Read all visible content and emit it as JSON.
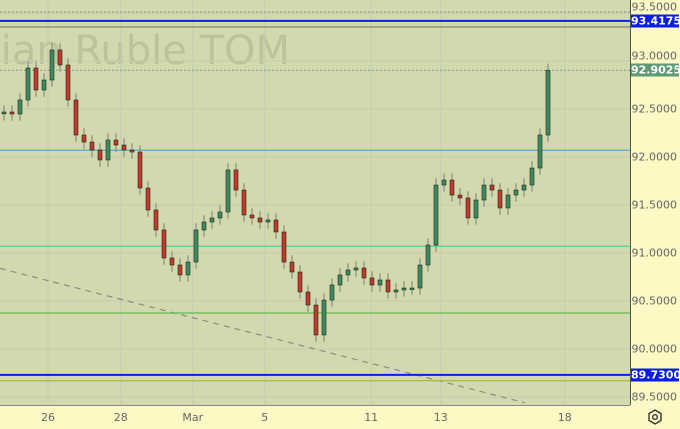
{
  "chart_data": {
    "type": "candlestick",
    "title": "",
    "watermark": "sian Ruble TOM",
    "ylim": [
      89.4,
      93.63
    ],
    "y_ticks": [
      "93.5000",
      "93.0000",
      "92.5000",
      "92.0000",
      "91.5000",
      "91.0000",
      "90.5000",
      "90.0000",
      "89.5000"
    ],
    "x_ticks": [
      {
        "label": "26",
        "at": 5.5
      },
      {
        "label": "28",
        "at": 14.6
      },
      {
        "label": "Mar",
        "at": 23.6
      },
      {
        "label": "5",
        "at": 32.6
      },
      {
        "label": "11",
        "at": 45.9
      },
      {
        "label": "13",
        "at": 54.6
      },
      {
        "label": "18",
        "at": 70.1
      }
    ],
    "first_open": 92.45,
    "closes": [
      92.469,
      92.448,
      92.594,
      92.927,
      92.698,
      92.802,
      93.115,
      92.958,
      92.594,
      92.229,
      92.156,
      92.073,
      91.969,
      92.177,
      92.125,
      92.073,
      92.052,
      91.677,
      91.448,
      91.24,
      90.948,
      90.875,
      90.771,
      90.906,
      91.24,
      91.323,
      91.365,
      91.427,
      91.865,
      91.656,
      91.396,
      91.365,
      91.323,
      91.344,
      91.219,
      90.906,
      90.802,
      90.594,
      90.458,
      90.146,
      90.51,
      90.667,
      90.771,
      90.823,
      90.844,
      90.74,
      90.667,
      90.719,
      90.594,
      90.615,
      90.635,
      90.635,
      90.875,
      91.083,
      91.708,
      91.76,
      91.604,
      91.573,
      91.365,
      91.552,
      91.708,
      91.656,
      91.469,
      91.604,
      91.656,
      91.708,
      91.885,
      92.229,
      92.9025
    ],
    "levels": [
      {
        "price": 93.51,
        "style": "dotted",
        "color": "#9aa58a"
      },
      {
        "price": 93.4175,
        "style": "solid",
        "color": "#0a1ee6",
        "label": "93.4175"
      },
      {
        "price": 93.355,
        "style": "solid",
        "color": "#8a8f78"
      },
      {
        "price": 92.9025,
        "style": "dotted",
        "color": "#8aa892",
        "label": "92.9025",
        "label_color": "#5e9a74"
      },
      {
        "price": 92.07,
        "style": "solid",
        "color": "#5aa9c4"
      },
      {
        "price": 91.07,
        "style": "solid",
        "color": "#55cc99"
      },
      {
        "price": 90.375,
        "style": "solid",
        "color": "#66bb55"
      },
      {
        "price": 89.73,
        "style": "solid",
        "color": "#0a1ee6",
        "label": "89.7300"
      },
      {
        "price": 89.67,
        "style": "solid",
        "color": "#a6c040"
      }
    ],
    "trendline": {
      "from": {
        "at": -0.5,
        "price": 90.84
      },
      "to": {
        "at": 65.1,
        "price": 89.44
      },
      "style": "dashed",
      "color": "#8a8f84"
    },
    "colors": {
      "up": "#3f8a5e",
      "down": "#c0392b",
      "background": "#d3d9ae",
      "axis": "#fdf9c4"
    }
  },
  "settings_icon": "gear-icon"
}
